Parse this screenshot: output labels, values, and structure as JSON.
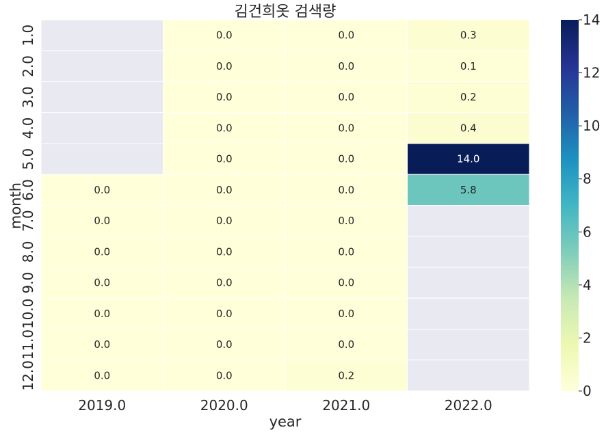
{
  "chart_data": {
    "type": "heatmap",
    "title": "김건희옷 검색량",
    "xlabel": "year",
    "ylabel": "month",
    "x_categories": [
      "2019.0",
      "2020.0",
      "2021.0",
      "2022.0"
    ],
    "y_categories": [
      "1.0",
      "2.0",
      "3.0",
      "4.0",
      "5.0",
      "6.0",
      "7.0",
      "8.0",
      "9.0",
      "10.0",
      "11.0",
      "12.0"
    ],
    "values": [
      [
        null,
        0.0,
        0.0,
        0.3
      ],
      [
        null,
        0.0,
        0.0,
        0.1
      ],
      [
        null,
        0.0,
        0.0,
        0.2
      ],
      [
        null,
        0.0,
        0.0,
        0.4
      ],
      [
        null,
        0.0,
        0.0,
        14.0
      ],
      [
        0.0,
        0.0,
        0.0,
        5.8
      ],
      [
        0.0,
        0.0,
        0.0,
        null
      ],
      [
        0.0,
        0.0,
        0.0,
        null
      ],
      [
        0.0,
        0.0,
        0.0,
        null
      ],
      [
        0.0,
        0.0,
        0.0,
        null
      ],
      [
        0.0,
        0.0,
        0.0,
        null
      ],
      [
        0.0,
        0.0,
        0.2,
        null
      ]
    ],
    "colorbar": {
      "min": 0,
      "max": 14,
      "ticks": [
        "0",
        "2",
        "4",
        "6",
        "8",
        "10",
        "12",
        "14"
      ],
      "colormap": "YlGnBu"
    },
    "missing_color": "#e9e9f1",
    "grid_color": "#ffffff"
  }
}
